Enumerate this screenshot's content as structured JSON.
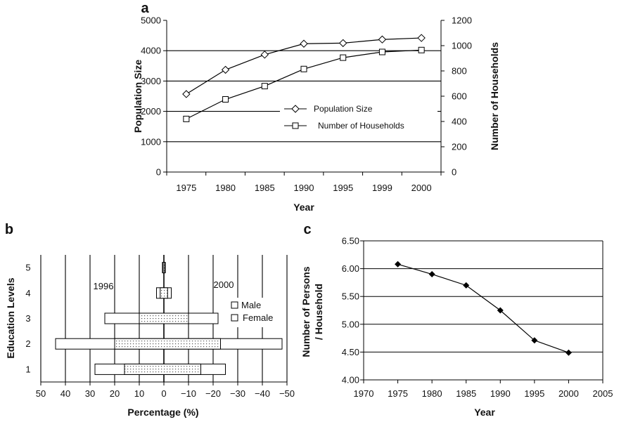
{
  "chart_data": [
    {
      "panel": "a",
      "type": "line",
      "x": [
        "1975",
        "1980",
        "1985",
        "1990",
        "1995",
        "1999",
        "2000"
      ],
      "xlabel": "Year",
      "ylabel": "Population Size",
      "y2label": "Number of Households",
      "ylim": [
        0,
        5000
      ],
      "yticks": [
        "0",
        "1000",
        "2000",
        "3000",
        "4000",
        "5000"
      ],
      "y2lim": [
        0,
        1200
      ],
      "y2ticks": [
        "0",
        "200",
        "400",
        "600",
        "800",
        "1000",
        "1200"
      ],
      "grid": true,
      "legend": "center-right",
      "series": [
        {
          "name": "Population Size",
          "axis": "left",
          "marker": "diamond-open",
          "values": [
            2570,
            3370,
            3870,
            4230,
            4250,
            4370,
            4420
          ]
        },
        {
          "name": "Number of Households",
          "axis": "right",
          "marker": "square-open",
          "values": [
            420,
            575,
            680,
            815,
            905,
            950,
            965
          ]
        }
      ]
    },
    {
      "panel": "b",
      "type": "bar",
      "orientation": "horizontal",
      "categories": [
        "1",
        "2",
        "3",
        "4",
        "5"
      ],
      "xlabel": "Percentage (%)",
      "ylabel": "Education Levels",
      "xlim": [
        50,
        -50
      ],
      "xticks": [
        "50",
        "40",
        "30",
        "20",
        "10",
        "0",
        "−10",
        "−20",
        "−30",
        "−40",
        "−50"
      ],
      "annotations": [
        "1996",
        "2000"
      ],
      "legend": "right",
      "series": [
        {
          "name": "Male",
          "years": "1996 vs 2000",
          "left": [
            28,
            44,
            24,
            3,
            0.6
          ],
          "right": [
            -25,
            -48,
            -22,
            -3,
            -0.6
          ]
        },
        {
          "name": "Female",
          "years": "1996 vs 2000",
          "left": [
            16,
            20,
            10,
            1.5,
            0.3
          ],
          "right": [
            -15,
            -23,
            -10,
            -1.5,
            -0.3
          ]
        }
      ]
    },
    {
      "panel": "c",
      "type": "line",
      "x": [
        1975,
        1980,
        1985,
        1990,
        1995,
        2000
      ],
      "values": [
        6.08,
        5.9,
        5.7,
        5.25,
        4.71,
        4.49
      ],
      "xlabel": "Year",
      "ylabel": "Number of Persons / Household",
      "xlim": [
        1970,
        2005
      ],
      "xticks": [
        "1970",
        "1975",
        "1980",
        "1985",
        "1990",
        "1995",
        "2000",
        "2005"
      ],
      "ylim": [
        4.0,
        6.5
      ],
      "yticks": [
        "4.00",
        "4.50",
        "5.00",
        "5.50",
        "6.00",
        "6.50"
      ],
      "grid": true,
      "marker": "diamond-filled"
    }
  ]
}
